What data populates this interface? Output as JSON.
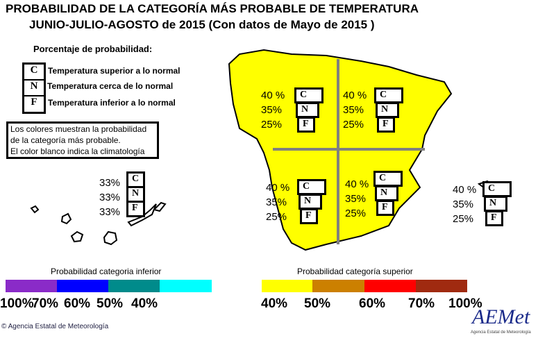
{
  "title_line1": "PROBABILIDAD DE LA CATEGORÍA MÁS PROBABLE DE TEMPERATURA",
  "title_line2": "JUNIO-JULIO-AGOSTO  de 2015  (Con datos de Mayo de 2015  )",
  "legend": {
    "heading": "Porcentaje de probabilidad:",
    "items": [
      {
        "code": "C",
        "label": "Temperatura superior a lo normal"
      },
      {
        "code": "N",
        "label": "Temperatura cerca de lo normal"
      },
      {
        "code": "F",
        "label": "Temperatura inferior a lo normal"
      }
    ],
    "note": [
      "Los colores muestran la probabilidad",
      "de la categoría más probable.",
      "El color blanco indica la climatología"
    ]
  },
  "regions": {
    "northwest": {
      "C": "40 %",
      "N": "35%",
      "F": "25%"
    },
    "northeast": {
      "C": "40 %",
      "N": "35%",
      "F": "25%"
    },
    "southwest": {
      "C": "40 %",
      "N": "35%",
      "F": "25%"
    },
    "southeast": {
      "C": "40 %",
      "N": "35%",
      "F": "25%"
    },
    "balearics": {
      "C": "40 %",
      "N": "35%",
      "F": "25%"
    },
    "canarias": {
      "C": "33%",
      "N": "33%",
      "F": "33%"
    }
  },
  "codes": {
    "C": "C",
    "N": "N",
    "F": "F"
  },
  "map_fill_color": "#ffff00",
  "scale_lower": {
    "title": "Probabilidad categoria inferior",
    "colors": [
      "#8a2bc8",
      "#0000ff",
      "#008b8b",
      "#00ffff"
    ],
    "labels": [
      "100%",
      "70%",
      "60%",
      "50%",
      "40%"
    ]
  },
  "scale_upper": {
    "title": "Probabilidad categoría superior",
    "colors": [
      "#ffff00",
      "#cc8000",
      "#ff0000",
      "#a02a10"
    ],
    "labels": [
      "40%",
      "50%",
      "60%",
      "70%",
      "100%"
    ]
  },
  "footer": {
    "credit": "Agencia Estatal de Meteorología",
    "copyright": "©",
    "logo": "AEMet",
    "logo_sub": "Agencia Estatal de Meteorología"
  }
}
